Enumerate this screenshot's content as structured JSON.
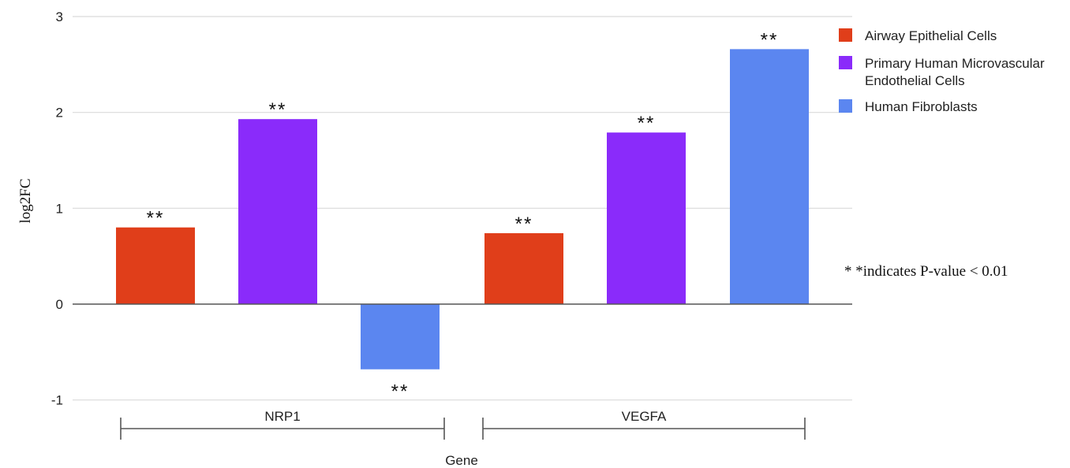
{
  "chart_data": {
    "type": "bar",
    "title": "",
    "xlabel": "Gene",
    "ylabel": "log2FC",
    "ylim": [
      -1,
      3
    ],
    "yticks": [
      -1,
      0,
      1,
      2,
      3
    ],
    "grid": true,
    "legend_position": "top-right",
    "categories": [
      "NRP1",
      "VEGFA"
    ],
    "series": [
      {
        "name": "Airway Epithelial Cells",
        "color": "#E03E1A",
        "values": [
          0.8,
          0.74
        ]
      },
      {
        "name": "Primary Human Microvascular Endothelial Cells",
        "color": "#8A2BFA",
        "values": [
          1.93,
          1.79
        ]
      },
      {
        "name": "Human Fibroblasts",
        "color": "#5B86F0",
        "values": [
          -0.68,
          2.66
        ]
      }
    ],
    "significance_label": "**",
    "annotation": "* *indicates P-value < 0.01"
  }
}
